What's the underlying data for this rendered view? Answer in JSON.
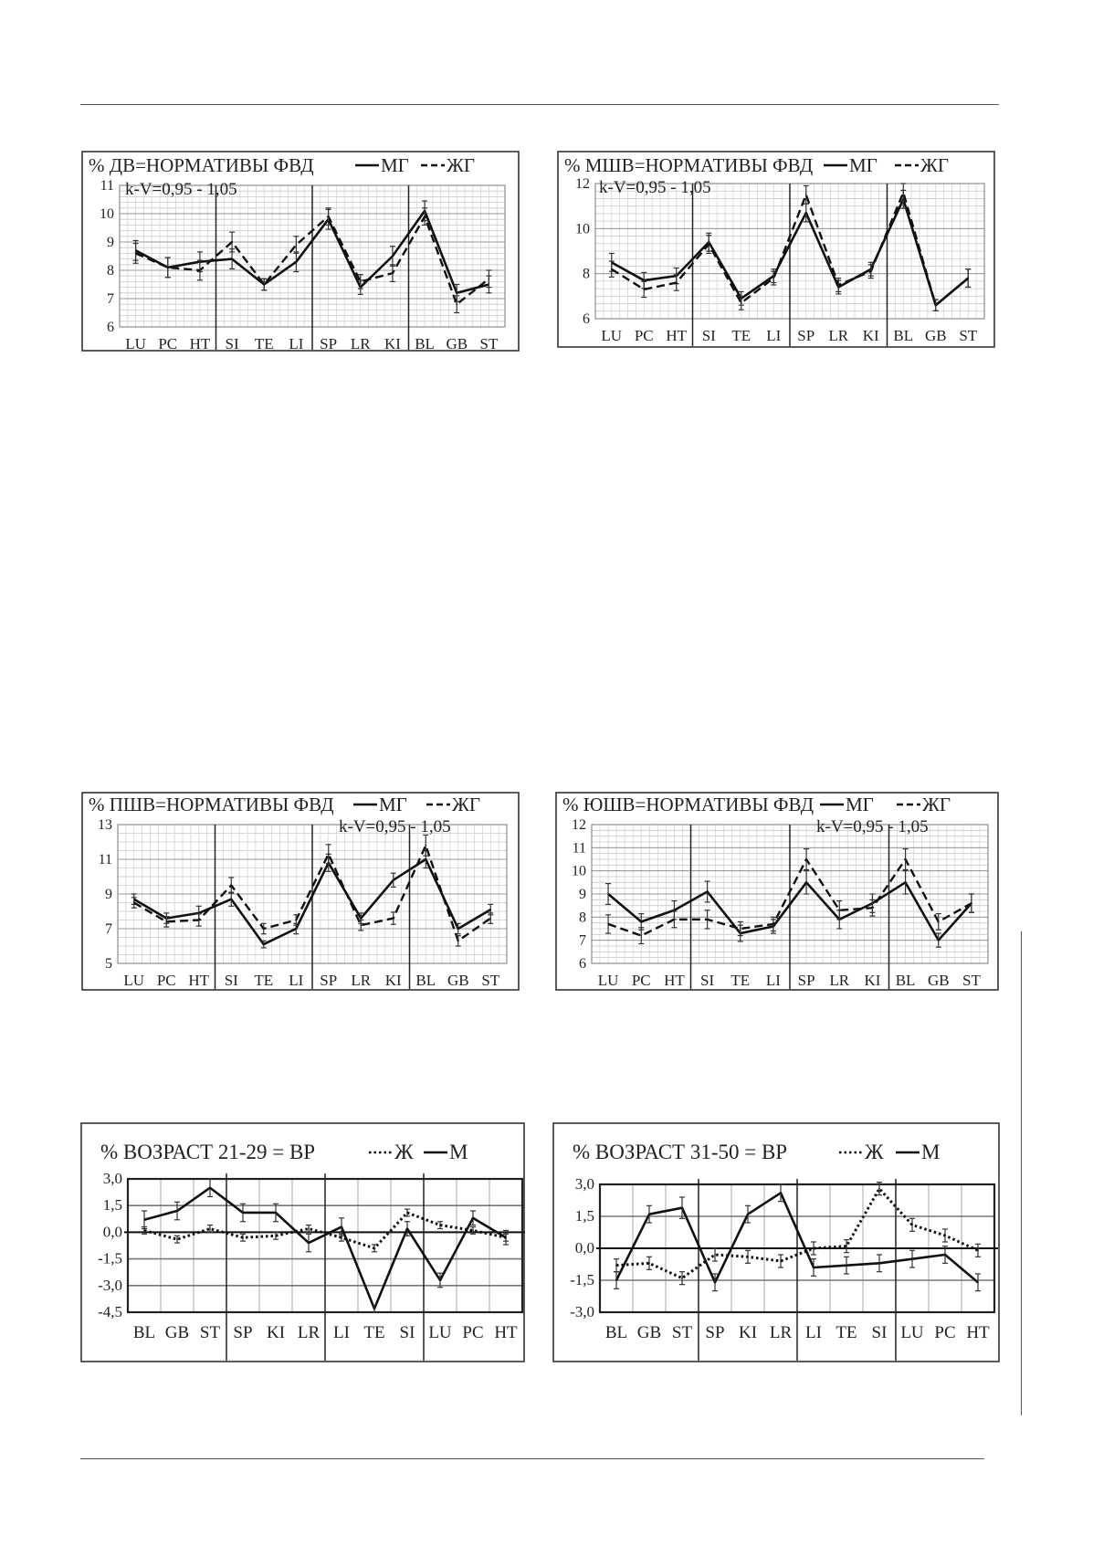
{
  "chart_data": [
    {
      "type": "line",
      "title": "% ДВ=НОРМАТИВЫ ФВД",
      "annotation": "k-V=0,95 - 1,05",
      "categories": [
        "LU",
        "PC",
        "HT",
        "SI",
        "TE",
        "LI",
        "SP",
        "LR",
        "KI",
        "BL",
        "GB",
        "ST"
      ],
      "ylim": [
        6,
        11
      ],
      "yticks": [
        "6",
        "7",
        "8",
        "9",
        "10",
        "11"
      ],
      "ytick_values": [
        6,
        7,
        8,
        9,
        10,
        11
      ],
      "group_separators_after": [
        3,
        6,
        9
      ],
      "grid": true,
      "legend_position": "top-right",
      "series": [
        {
          "name": "МГ",
          "style": "solid",
          "values": [
            8.7,
            8.1,
            8.3,
            8.4,
            7.5,
            8.3,
            9.8,
            7.4,
            8.5,
            10.1,
            7.2,
            7.5
          ],
          "errors": [
            0.35,
            0.35,
            0.35,
            0.35,
            0.2,
            0.35,
            0.35,
            0.25,
            0.35,
            0.35,
            0.3,
            0.3
          ]
        },
        {
          "name": "ЖГ",
          "style": "dashed",
          "values": [
            8.6,
            8.1,
            8.0,
            9.0,
            7.5,
            8.9,
            9.9,
            7.6,
            7.9,
            9.9,
            6.8,
            7.7
          ],
          "errors": [
            0.35,
            0.35,
            0.35,
            0.35,
            0.2,
            0.3,
            0.3,
            0.25,
            0.3,
            0.3,
            0.3,
            0.3
          ]
        }
      ]
    },
    {
      "type": "line",
      "title": "% МШВ=НОРМАТИВЫ ФВД",
      "annotation": "k-V=0,95 - 1,05",
      "categories": [
        "LU",
        "PC",
        "HT",
        "SI",
        "TE",
        "LI",
        "SP",
        "LR",
        "KI",
        "BL",
        "GB",
        "ST"
      ],
      "ylim": [
        6,
        12
      ],
      "yticks": [
        "6",
        "8",
        "10",
        "12"
      ],
      "ytick_values": [
        6,
        8,
        10,
        12
      ],
      "group_separators_after": [
        3,
        6,
        9
      ],
      "grid": true,
      "legend_position": "top-right",
      "series": [
        {
          "name": "МГ",
          "style": "solid",
          "values": [
            8.5,
            7.7,
            7.9,
            9.4,
            6.9,
            7.9,
            10.7,
            7.4,
            8.2,
            11.3,
            6.6,
            7.8
          ],
          "errors": [
            0.4,
            0.35,
            0.35,
            0.4,
            0.3,
            0.3,
            0.4,
            0.3,
            0.3,
            0.4,
            0.25,
            0.4
          ]
        },
        {
          "name": "ЖГ",
          "style": "dashed",
          "values": [
            8.2,
            7.3,
            7.6,
            9.3,
            6.7,
            7.8,
            11.5,
            7.5,
            8.1,
            11.6,
            6.6,
            7.8
          ],
          "errors": [
            0.35,
            0.35,
            0.35,
            0.4,
            0.3,
            0.3,
            0.4,
            0.3,
            0.3,
            0.4,
            0.25,
            0.4
          ]
        }
      ]
    },
    {
      "type": "line",
      "title": "% ПШВ=НОРМАТИВЫ ФВД",
      "annotation": "k-V=0,95 - 1,05",
      "categories": [
        "LU",
        "PC",
        "HT",
        "SI",
        "TE",
        "LI",
        "SP",
        "LR",
        "KI",
        "BL",
        "GB",
        "ST"
      ],
      "ylim": [
        5,
        13
      ],
      "yticks": [
        "5",
        "7",
        "9",
        "11",
        "13"
      ],
      "ytick_values": [
        5,
        7,
        9,
        11,
        13
      ],
      "group_separators_after": [
        3,
        6,
        9
      ],
      "grid": true,
      "legend_position": "top-right",
      "series": [
        {
          "name": "МГ",
          "style": "solid",
          "values": [
            8.7,
            7.6,
            7.9,
            8.7,
            6.1,
            7.0,
            10.8,
            7.6,
            9.8,
            11.0,
            7.0,
            8.1
          ],
          "errors": [
            0.3,
            0.3,
            0.4,
            0.4,
            0.2,
            0.3,
            0.5,
            0.3,
            0.4,
            0.5,
            0.3,
            0.3
          ]
        },
        {
          "name": "ЖГ",
          "style": "dashed",
          "values": [
            8.5,
            7.4,
            7.5,
            9.5,
            7.0,
            7.5,
            11.3,
            7.2,
            7.6,
            11.8,
            6.3,
            7.6
          ],
          "errors": [
            0.3,
            0.3,
            0.35,
            0.45,
            0.3,
            0.3,
            0.55,
            0.3,
            0.35,
            0.6,
            0.3,
            0.3
          ]
        }
      ]
    },
    {
      "type": "line",
      "title": "% ЮШВ=НОРМАТИВЫ ФВД",
      "annotation": "k-V=0,95 - 1,05",
      "categories": [
        "LU",
        "PC",
        "HT",
        "SI",
        "TE",
        "LI",
        "SP",
        "LR",
        "KI",
        "BL",
        "GB",
        "ST"
      ],
      "ylim": [
        6,
        12
      ],
      "yticks": [
        "6",
        "7",
        "8",
        "9",
        "10",
        "11",
        "12"
      ],
      "ytick_values": [
        6,
        7,
        8,
        9,
        10,
        11,
        12
      ],
      "group_separators_after": [
        3,
        6,
        9
      ],
      "grid": true,
      "legend_position": "top-right",
      "series": [
        {
          "name": "МГ",
          "style": "solid",
          "values": [
            9.0,
            7.8,
            8.3,
            9.1,
            7.3,
            7.6,
            9.5,
            7.9,
            8.6,
            9.5,
            7.0,
            8.6
          ],
          "errors": [
            0.45,
            0.35,
            0.4,
            0.45,
            0.35,
            0.3,
            0.5,
            0.4,
            0.4,
            0.5,
            0.3,
            0.4
          ]
        },
        {
          "name": "ЖГ",
          "style": "dashed",
          "values": [
            7.7,
            7.2,
            7.9,
            7.9,
            7.5,
            7.7,
            10.5,
            8.3,
            8.4,
            10.5,
            7.8,
            8.6
          ],
          "errors": [
            0.4,
            0.35,
            0.35,
            0.4,
            0.3,
            0.3,
            0.45,
            0.4,
            0.35,
            0.45,
            0.35,
            0.4
          ]
        }
      ]
    },
    {
      "type": "line",
      "title": "% ВОЗРАСТ 21-29 = ВР",
      "categories": [
        "BL",
        "GB",
        "ST",
        "SP",
        "KI",
        "LR",
        "LI",
        "TE",
        "SI",
        "LU",
        "PC",
        "HT"
      ],
      "ylim": [
        -4.5,
        3.0
      ],
      "yticks": [
        "3,0",
        "1,5",
        "0,0",
        "-1,5",
        "-3,0",
        "-4,5"
      ],
      "ytick_values": [
        3.0,
        1.5,
        0.0,
        -1.5,
        -3.0,
        -4.5
      ],
      "group_separators_after": [
        3,
        6,
        9
      ],
      "grid": true,
      "legend_position": "top-right",
      "series": [
        {
          "name": "Ж",
          "style": "dotted",
          "values": [
            0.1,
            -0.4,
            0.2,
            -0.3,
            -0.2,
            0.2,
            -0.3,
            -0.9,
            1.1,
            0.4,
            0.1,
            -0.3
          ],
          "errors": [
            0.2,
            0.2,
            0.2,
            0.2,
            0.2,
            0.2,
            0.2,
            0.2,
            0.2,
            0.2,
            0.2,
            0.2
          ]
        },
        {
          "name": "М",
          "style": "solid",
          "values": [
            0.7,
            1.2,
            2.5,
            1.1,
            1.1,
            -0.6,
            0.3,
            -4.3,
            0.2,
            -2.7,
            0.8,
            -0.3
          ],
          "errors": [
            0.5,
            0.5,
            0.5,
            0.5,
            0.5,
            0.5,
            0.5,
            0.2,
            0.4,
            0.4,
            0.4,
            0.4
          ]
        }
      ]
    },
    {
      "type": "line",
      "title": "% ВОЗРАСТ 31-50 = ВР",
      "categories": [
        "BL",
        "GB",
        "ST",
        "SP",
        "KI",
        "LR",
        "LI",
        "TE",
        "SI",
        "LU",
        "PC",
        "HT"
      ],
      "ylim": [
        -3.0,
        3.0
      ],
      "yticks": [
        "3,0",
        "1,5",
        "0,0",
        "-1,5",
        "-3,0"
      ],
      "ytick_values": [
        3.0,
        1.5,
        0.0,
        -1.5,
        -3.0
      ],
      "group_separators_after": [
        3,
        6,
        9
      ],
      "grid": true,
      "legend_position": "top-right",
      "series": [
        {
          "name": "Ж",
          "style": "dotted",
          "values": [
            -0.8,
            -0.7,
            -1.4,
            -0.3,
            -0.4,
            -0.6,
            0.0,
            0.1,
            2.8,
            1.1,
            0.6,
            -0.1
          ],
          "errors": [
            0.3,
            0.3,
            0.3,
            0.3,
            0.3,
            0.3,
            0.3,
            0.3,
            0.3,
            0.3,
            0.3,
            0.3
          ]
        },
        {
          "name": "М",
          "style": "solid",
          "values": [
            -1.5,
            1.6,
            1.9,
            -1.6,
            1.6,
            2.6,
            -0.9,
            -0.8,
            -0.7,
            -0.5,
            -0.3,
            -1.6
          ],
          "errors": [
            0.4,
            0.4,
            0.5,
            0.4,
            0.4,
            0.4,
            0.4,
            0.4,
            0.4,
            0.4,
            0.4,
            0.4
          ]
        }
      ]
    }
  ]
}
